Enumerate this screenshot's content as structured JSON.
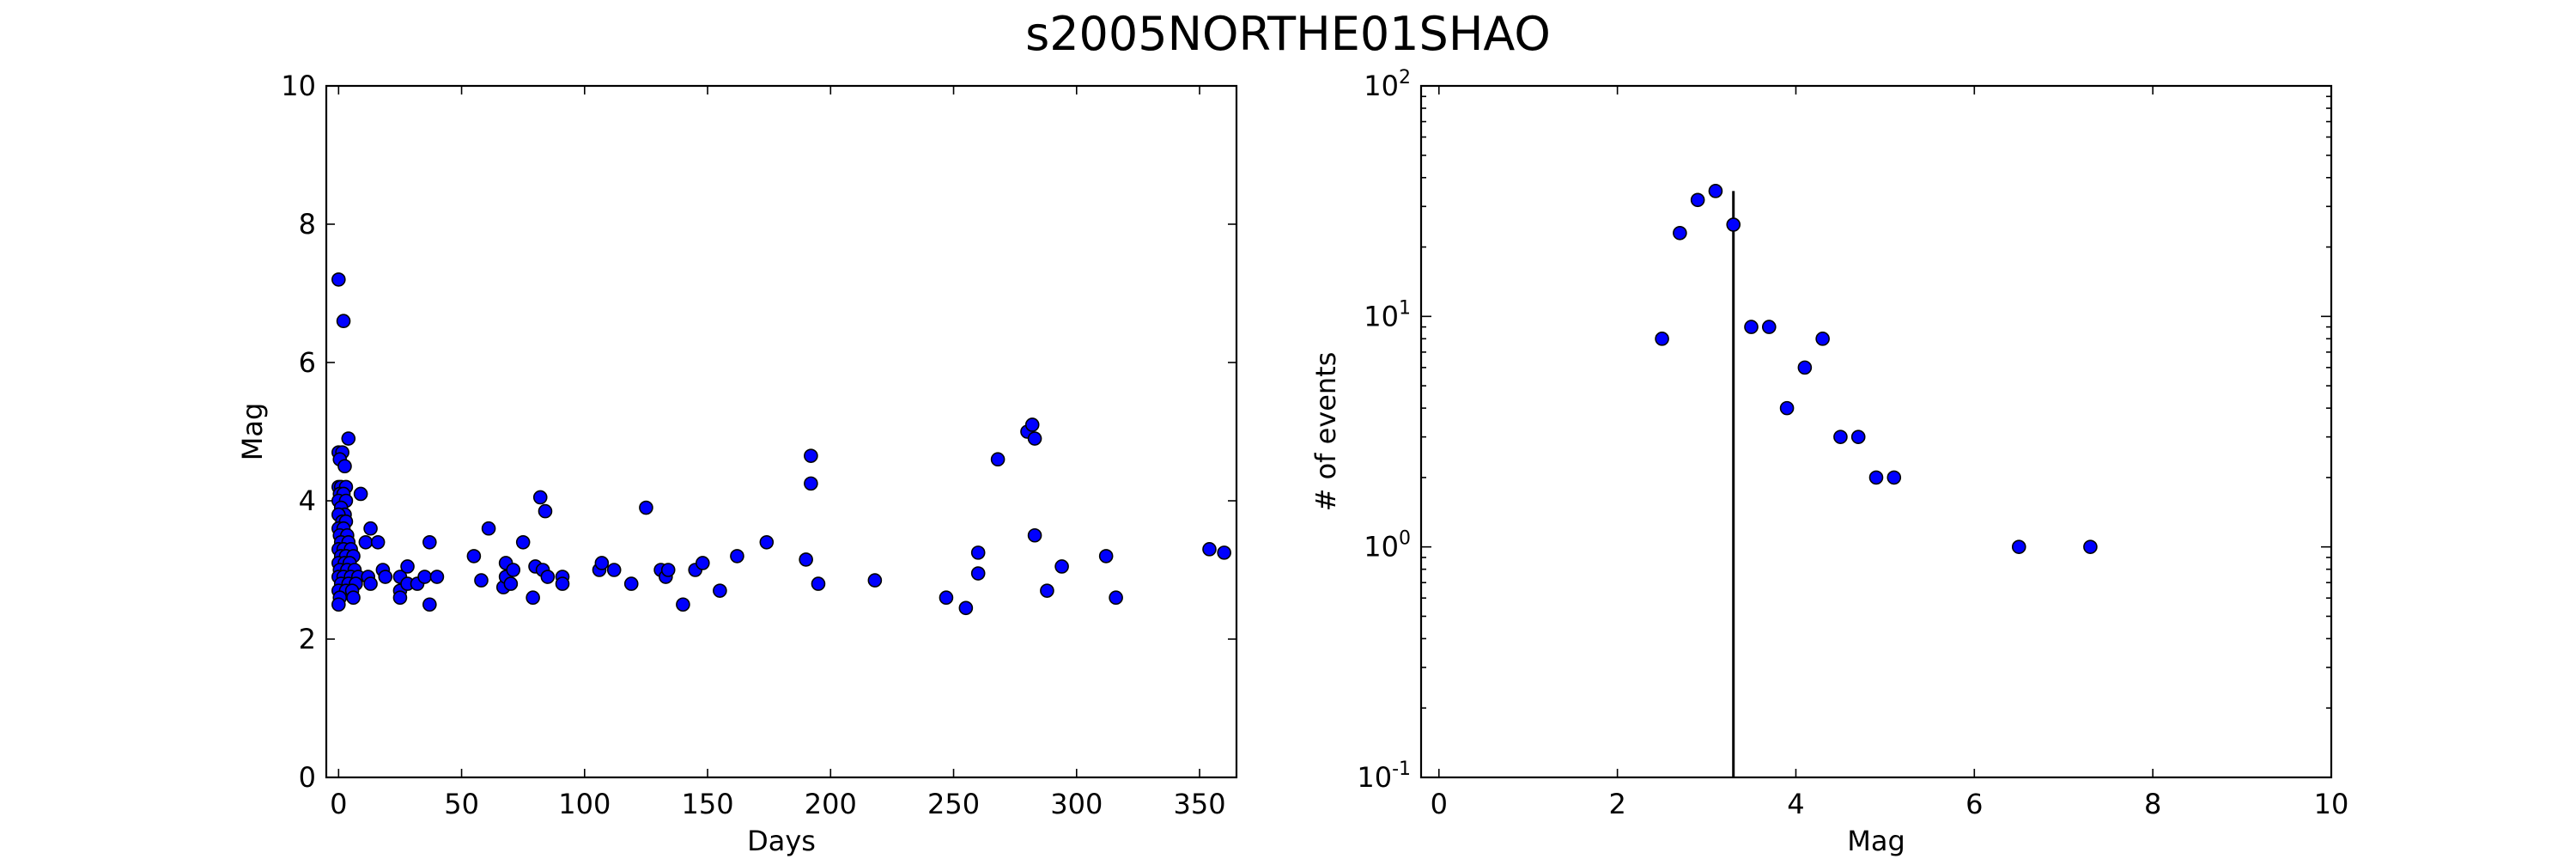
{
  "title": "s2005NORTHE01SHAO",
  "colors": {
    "marker_fill": "#0000ff",
    "marker_edge": "#000000",
    "axes": "#000000"
  },
  "chart_data": [
    {
      "type": "scatter",
      "xlabel": "Days",
      "ylabel": "Mag",
      "xlim": [
        -5,
        365
      ],
      "ylim": [
        0,
        10
      ],
      "xticks": [
        0,
        50,
        100,
        150,
        200,
        250,
        300,
        350
      ],
      "yticks": [
        0,
        2,
        4,
        6,
        8,
        10
      ],
      "xtick_labels": [
        "0",
        "50",
        "100",
        "150",
        "200",
        "250",
        "300",
        "350"
      ],
      "ytick_labels": [
        "0",
        "2",
        "4",
        "6",
        "8",
        "10"
      ],
      "points": [
        [
          0.0,
          7.2
        ],
        [
          2.0,
          6.6
        ],
        [
          4.0,
          4.9
        ],
        [
          0.0,
          4.7
        ],
        [
          1.5,
          4.7
        ],
        [
          0.5,
          4.6
        ],
        [
          2.5,
          4.5
        ],
        [
          0.0,
          4.2
        ],
        [
          1.0,
          4.2
        ],
        [
          3.0,
          4.2
        ],
        [
          0.5,
          4.1
        ],
        [
          2.0,
          4.1
        ],
        [
          9.0,
          4.1
        ],
        [
          0.0,
          4.0
        ],
        [
          3.0,
          4.0
        ],
        [
          1.0,
          3.9
        ],
        [
          2.5,
          3.8
        ],
        [
          0.0,
          3.8
        ],
        [
          1.5,
          3.7
        ],
        [
          3.0,
          3.7
        ],
        [
          0.0,
          3.6
        ],
        [
          2.0,
          3.6
        ],
        [
          13.0,
          3.6
        ],
        [
          0.5,
          3.5
        ],
        [
          3.5,
          3.5
        ],
        [
          1.0,
          3.4
        ],
        [
          4.0,
          3.4
        ],
        [
          11.0,
          3.4
        ],
        [
          16.0,
          3.4
        ],
        [
          0.0,
          3.3
        ],
        [
          2.0,
          3.3
        ],
        [
          5.0,
          3.3
        ],
        [
          1.0,
          3.2
        ],
        [
          3.0,
          3.2
        ],
        [
          6.0,
          3.2
        ],
        [
          0.0,
          3.1
        ],
        [
          2.5,
          3.1
        ],
        [
          4.5,
          3.1
        ],
        [
          0.5,
          3.0
        ],
        [
          3.5,
          3.0
        ],
        [
          6.5,
          3.0
        ],
        [
          18.0,
          3.0
        ],
        [
          0.0,
          2.9
        ],
        [
          2.0,
          2.9
        ],
        [
          5.0,
          2.9
        ],
        [
          8.0,
          2.9
        ],
        [
          12.0,
          2.9
        ],
        [
          19.0,
          2.9
        ],
        [
          1.0,
          2.8
        ],
        [
          4.0,
          2.8
        ],
        [
          7.0,
          2.8
        ],
        [
          13.0,
          2.8
        ],
        [
          0.0,
          2.7
        ],
        [
          3.0,
          2.7
        ],
        [
          5.5,
          2.7
        ],
        [
          0.5,
          2.6
        ],
        [
          6.0,
          2.6
        ],
        [
          0.0,
          2.5
        ],
        [
          25.0,
          2.9
        ],
        [
          25.0,
          2.7
        ],
        [
          25.0,
          2.6
        ],
        [
          28.0,
          2.8
        ],
        [
          28.0,
          3.05
        ],
        [
          32.0,
          2.8
        ],
        [
          35.0,
          2.9
        ],
        [
          37.0,
          2.5
        ],
        [
          37.0,
          3.4
        ],
        [
          40.0,
          2.9
        ],
        [
          55.0,
          3.2
        ],
        [
          58.0,
          2.85
        ],
        [
          61.0,
          3.6
        ],
        [
          67.0,
          2.75
        ],
        [
          68.0,
          3.1
        ],
        [
          68.0,
          2.9
        ],
        [
          70.0,
          2.8
        ],
        [
          71.0,
          3.0
        ],
        [
          75.0,
          3.4
        ],
        [
          79.0,
          2.6
        ],
        [
          80.0,
          3.05
        ],
        [
          82.0,
          4.05
        ],
        [
          83.0,
          3.0
        ],
        [
          84.0,
          3.85
        ],
        [
          85.0,
          2.9
        ],
        [
          91.0,
          2.9
        ],
        [
          91.0,
          2.8
        ],
        [
          106.0,
          3.0
        ],
        [
          107.0,
          3.1
        ],
        [
          112.0,
          3.0
        ],
        [
          119.0,
          2.8
        ],
        [
          125.0,
          3.9
        ],
        [
          131.0,
          3.0
        ],
        [
          133.0,
          2.9
        ],
        [
          134.0,
          3.0
        ],
        [
          140.0,
          2.5
        ],
        [
          145.0,
          3.0
        ],
        [
          148.0,
          3.1
        ],
        [
          155.0,
          2.7
        ],
        [
          162.0,
          3.2
        ],
        [
          174.0,
          3.4
        ],
        [
          190.0,
          3.15
        ],
        [
          192.0,
          4.65
        ],
        [
          192.0,
          4.25
        ],
        [
          195.0,
          2.8
        ],
        [
          218.0,
          2.85
        ],
        [
          247.0,
          2.6
        ],
        [
          255.0,
          2.45
        ],
        [
          260.0,
          3.25
        ],
        [
          260.0,
          2.95
        ],
        [
          268.0,
          4.6
        ],
        [
          280.0,
          5.0
        ],
        [
          282.0,
          5.1
        ],
        [
          283.0,
          4.9
        ],
        [
          283.0,
          3.5
        ],
        [
          288.0,
          2.7
        ],
        [
          294.0,
          3.05
        ],
        [
          312.0,
          3.2
        ],
        [
          316.0,
          2.6
        ],
        [
          354.0,
          3.3
        ],
        [
          360.0,
          3.25
        ]
      ]
    },
    {
      "type": "scatter",
      "xlabel": "Mag",
      "ylabel": "# of events",
      "yscale": "log",
      "xlim": [
        -0.2,
        10
      ],
      "ylim": [
        0.1,
        100
      ],
      "xticks": [
        0,
        2,
        4,
        6,
        8,
        10
      ],
      "xtick_labels": [
        "0",
        "2",
        "4",
        "6",
        "8",
        "10"
      ],
      "yticks": [
        {
          "value": 0.1,
          "base": "10",
          "exp": "-1"
        },
        {
          "value": 1,
          "base": "10",
          "exp": "0"
        },
        {
          "value": 10,
          "base": "10",
          "exp": "1"
        },
        {
          "value": 100,
          "base": "10",
          "exp": "2"
        }
      ],
      "points": [
        [
          2.5,
          8
        ],
        [
          2.7,
          23
        ],
        [
          2.9,
          32
        ],
        [
          3.1,
          35
        ],
        [
          3.3,
          25
        ],
        [
          3.5,
          9
        ],
        [
          3.7,
          9
        ],
        [
          3.9,
          4
        ],
        [
          4.1,
          6
        ],
        [
          4.3,
          8
        ],
        [
          4.5,
          3
        ],
        [
          4.7,
          3
        ],
        [
          4.9,
          2
        ],
        [
          5.1,
          2
        ],
        [
          6.5,
          1
        ],
        [
          7.3,
          1
        ]
      ],
      "vline": {
        "x": 3.3,
        "y_top": 35
      }
    }
  ]
}
